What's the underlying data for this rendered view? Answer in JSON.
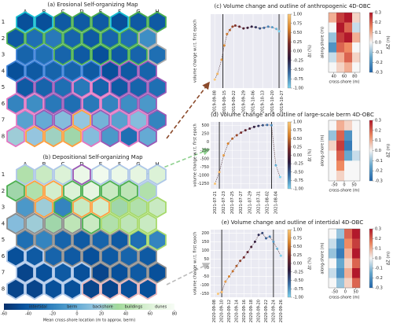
{
  "chart_data": [
    {
      "type": "hexmap",
      "title": "(a) Erosional Self-organizing Map",
      "columns": [
        "A",
        "B",
        "C",
        "D",
        "E",
        "F",
        "G",
        "H"
      ],
      "rows": [
        "1",
        "2",
        "3",
        "4",
        "5",
        "6",
        "7",
        "8"
      ],
      "values": [
        [
          -45,
          -45,
          -40,
          -40,
          -40,
          -45,
          -40,
          -40
        ],
        [
          -40,
          -30,
          -25,
          -35,
          -40,
          -35,
          -30,
          -15
        ],
        [
          -35,
          -30,
          -35,
          -40,
          -45,
          -40,
          -35,
          -30
        ],
        [
          -45,
          -40,
          -35,
          -35,
          -40,
          -45,
          -40,
          -35
        ],
        [
          -40,
          -35,
          -30,
          -25,
          -35,
          -40,
          -35,
          -30
        ],
        [
          -20,
          -15,
          -25,
          -30,
          -25,
          -20,
          -15,
          -10
        ],
        [
          -5,
          0,
          10,
          15,
          5,
          -5,
          10,
          -20
        ],
        [
          20,
          15,
          25,
          30,
          10,
          -10,
          -30,
          0
        ]
      ],
      "border_colors": [
        [
          "#17becf",
          "#17becf",
          "#4caf50",
          "#4caf50",
          "#4caf50",
          "#17becf",
          "#4caf50",
          "#4caf50"
        ],
        [
          "#4caf50",
          "#4caf50",
          "#4caf50",
          "#4caf50",
          "#4caf50",
          "#4caf50",
          "#4caf50",
          "#aaaaaa"
        ],
        [
          "#3a7fd5",
          "#3a7fd5",
          "#4caf50",
          "#4caf50",
          "#4caf50",
          "#4caf50",
          "#4caf50",
          "#aaaaaa"
        ],
        [
          "#3a7fd5",
          "#3a7fd5",
          "#3a7fd5",
          "#3a7fd5",
          "#3a7fd5",
          "#9b59b6",
          "#9b59b6",
          "#9b59b6"
        ],
        [
          "#9b59b6",
          "#9b59b6",
          "#9b59b6",
          "#e377c2",
          "#e377c2",
          "#9b59b6",
          "#9b59b6",
          "#9b59b6"
        ],
        [
          "#e377c2",
          "#e377c2",
          "#9b59b6",
          "#9b59b6",
          "#e377c2",
          "#e377c2",
          "#9b59b6",
          "#9b59b6"
        ],
        [
          "#e377c2",
          "#9b59b6",
          "#9b59b6",
          "#ff9f40",
          "#9b59b6",
          "#e377c2",
          "#e377c2",
          "#9b59b6"
        ],
        [
          "#e377c2",
          "#ff9f40",
          "#ff9f40",
          "#ff9f40",
          "#e377c2",
          "#9b59b6",
          "#e377c2",
          "#9b59b6"
        ]
      ]
    },
    {
      "type": "hexmap",
      "title": "(b) Depositional Self-organizing Map",
      "columns": [
        "A",
        "B",
        "C",
        "D",
        "E",
        "F",
        "G",
        "H"
      ],
      "rows": [
        "1",
        "2",
        "3",
        "4",
        "5",
        "6",
        "7",
        "8"
      ],
      "values": [
        [
          40,
          50,
          60,
          70,
          75,
          70,
          65,
          60
        ],
        [
          30,
          40,
          55,
          60,
          65,
          50,
          45,
          40
        ],
        [
          -10,
          20,
          -20,
          50,
          55,
          30,
          40,
          50
        ],
        [
          10,
          20,
          30,
          45,
          50,
          40,
          45,
          50
        ],
        [
          -30,
          -20,
          -35,
          -40,
          -35,
          -40,
          -30,
          -20
        ],
        [
          -45,
          -40,
          -35,
          -40,
          -45,
          -40,
          -35,
          -40
        ],
        [
          -50,
          -45,
          -40,
          -45,
          -50,
          -45,
          -40,
          -45
        ],
        [
          -50,
          -50,
          -45,
          -45,
          -50,
          -50,
          -45,
          -45
        ]
      ],
      "border_colors": [
        [
          "#aec7e8",
          "#aec7e8",
          "#aec7e8",
          "#9b59b6",
          "#aec7e8",
          "#aec7e8",
          "#aec7e8",
          "#aec7e8"
        ],
        [
          "#4caf50",
          "#ff9f40",
          "#ff9f40",
          "#4caf50",
          "#4caf50",
          "#4caf50",
          "#4caf50",
          "#aec7e8"
        ],
        [
          "#8c8c8c",
          "#ff9f40",
          "#4caf50",
          "#ff9f40",
          "#ff9f40",
          "#a6d96a",
          "#a6d96a",
          "#a6d96a"
        ],
        [
          "#8c8c8c",
          "#8c8c8c",
          "#8c8c8c",
          "#8c8c8c",
          "#4caf50",
          "#a6d96a",
          "#a6d96a",
          "#a6d96a"
        ],
        [
          "#8c8c8c",
          "#8c8c8c",
          "#8c8c8c",
          "#8c8c8c",
          "#8c8c8c",
          "#8c8c8c",
          "#a6d96a",
          "#a6d96a"
        ],
        [
          "#aec7e8",
          "#aec7e8",
          "#8c8c8c",
          "#8c8c8c",
          "#8c8c8c",
          "#8c8c8c",
          "#8c8c8c",
          "#8c8c8c"
        ],
        [
          "#aec7e8",
          "#aec7e8",
          "#aec7e8",
          "#aec7e8",
          "#8c8c8c",
          "#8c8c8c",
          "#8c8c8c",
          "#8c8c8c"
        ],
        [
          "#aec7e8",
          "#aec7e8",
          "#aec7e8",
          "#aec7e8",
          "#e8b4b8",
          "#e8b4b8",
          "#e8b4b8",
          "#e8b4b8"
        ]
      ]
    },
    {
      "type": "colorbar",
      "xlabel": "Mean cross-shore location (m to approx. berm)",
      "xlim": [
        -60,
        80
      ],
      "xticks": [
        -60,
        -40,
        -20,
        0,
        20,
        40,
        60,
        80
      ],
      "categories": [
        "intertidal",
        "berm",
        "backshore",
        "buildings",
        "dunes"
      ],
      "colors": [
        "#08306b",
        "#08519c",
        "#2171b5",
        "#4292c6",
        "#6baed6",
        "#9ecae1",
        "#a1d99b",
        "#c7e9c0",
        "#e5f5e0",
        "#f7fcf5"
      ]
    },
    {
      "type": "scatter",
      "title": "(c) Volume change and outline of anthropogenic 4D-OBC",
      "ylabel": "volume change w.r.t. first epoch",
      "x": [
        "2019-09-08",
        "2019-09-10",
        "2019-09-13",
        "2019-09-15",
        "2019-09-17",
        "2019-09-19",
        "2019-09-21",
        "2019-09-23",
        "2019-09-26",
        "2019-09-29",
        "2019-10-02",
        "2019-10-05",
        "2019-10-08",
        "2019-10-11",
        "2019-10-14",
        "2019-10-17",
        "2019-10-20",
        "2019-10-23",
        "2019-10-25"
      ],
      "values": [
        -25,
        -15,
        10,
        35,
        55,
        62,
        68,
        70,
        68,
        65,
        66,
        68,
        67,
        65,
        66,
        68,
        67,
        64,
        60
      ],
      "xlim": [
        "2019-09-05",
        "2019-10-29"
      ],
      "ylim": [
        -40,
        90
      ],
      "xticks": [
        "2019-09-08",
        "2019-09-15",
        "2019-09-22",
        "2019-09-29",
        "2019-10-06",
        "2019-10-13",
        "2019-10-20",
        "2019-10-27"
      ],
      "vlines": [
        "2019-09-14",
        "2019-10-25"
      ],
      "colorbar": {
        "label": "Δt (%)",
        "lim": [
          -1,
          1
        ],
        "ticks": [
          {
            "value": 1,
            "label": "1.00"
          },
          {
            "value": 0.75,
            "label": "0.75"
          },
          {
            "value": 0.5,
            "label": "0.50"
          },
          {
            "value": 0.25,
            "label": "0.25"
          },
          {
            "value": 0,
            "label": "0.00"
          },
          {
            "value": -0.25,
            "label": "-0.25"
          },
          {
            "value": -0.5,
            "label": "-0.50"
          },
          {
            "value": -0.75,
            "label": "-0.75"
          },
          {
            "value": -1,
            "label": "-1.00"
          }
        ],
        "colors": [
          "#7fd4f0",
          "#3a6ea5",
          "#2e1a3d",
          "#7a2a2a",
          "#d9822b",
          "#fbc97a"
        ]
      }
    },
    {
      "type": "scatter",
      "title": "(d) Volume change and outline of large-scale berm 4D-OBC",
      "ylabel": "volume change w.r.t. first epoch",
      "x": [
        "2021-07-21",
        "2021-07-22",
        "2021-07-23",
        "2021-07-24",
        "2021-07-25",
        "2021-07-26",
        "2021-07-27",
        "2021-07-28",
        "2021-07-29",
        "2021-07-30",
        "2021-07-31",
        "2021-08-01",
        "2021-08-02",
        "2021-08-03",
        "2021-08-04",
        "2021-08-05"
      ],
      "values": [
        -1250,
        -900,
        -400,
        -50,
        100,
        200,
        280,
        350,
        400,
        450,
        480,
        500,
        510,
        500,
        -700,
        -1050
      ],
      "xlim": [
        "2021-07-20",
        "2021-08-06"
      ],
      "ylim": [
        -1400,
        600
      ],
      "xticks": [
        "2021-07-21",
        "2021-07-23",
        "2021-07-25",
        "2021-07-27",
        "2021-07-29",
        "2021-07-31",
        "2021-08-02",
        "2021-08-04"
      ],
      "yticks": [
        500,
        250,
        0,
        -250,
        -500,
        -750,
        -1000,
        -1250
      ],
      "vlines": [
        "2021-07-22",
        "2021-08-03"
      ],
      "colorbar": {
        "label": "Δt (%)",
        "lim": [
          -1,
          1
        ],
        "ticks": [
          {
            "value": 1,
            "label": "1.00"
          },
          {
            "value": 0.75,
            "label": "0.75"
          },
          {
            "value": 0.5,
            "label": "0.50"
          },
          {
            "value": 0.25,
            "label": "0.25"
          },
          {
            "value": 0,
            "label": "0.00"
          },
          {
            "value": -0.25,
            "label": "-0.25"
          },
          {
            "value": -0.5,
            "label": "-0.50"
          },
          {
            "value": -0.75,
            "label": "-0.75"
          },
          {
            "value": -1,
            "label": "-1.00"
          }
        ],
        "colors": [
          "#7fd4f0",
          "#3a6ea5",
          "#2e1a3d",
          "#7a2a2a",
          "#d9822b",
          "#fbc97a"
        ]
      }
    },
    {
      "type": "scatter",
      "title": "(e) Volume change and outline of intertidal 4D-OBC",
      "ylabel": "volume change w.r.t. first epoch",
      "x": [
        "2020-09-09",
        "2020-09-10",
        "2020-09-11",
        "2020-09-12",
        "2020-09-13",
        "2020-09-14",
        "2020-09-15",
        "2020-09-16",
        "2020-09-17",
        "2020-09-18",
        "2020-09-19",
        "2020-09-20",
        "2020-09-21",
        "2020-09-22",
        "2020-09-23",
        "2020-09-24",
        "2020-09-25",
        "2020-09-26"
      ],
      "values": [
        -150,
        -140,
        -80,
        -50,
        -20,
        10,
        40,
        60,
        90,
        120,
        150,
        190,
        200,
        170,
        180,
        150,
        110,
        70
      ],
      "xlim": [
        "2020-09-07",
        "2020-09-27"
      ],
      "ylim": [
        -170,
        220
      ],
      "xticks": [
        "2020-09-08",
        "2020-09-10",
        "2020-09-12",
        "2020-09-14",
        "2020-09-16",
        "2020-09-18",
        "2020-09-20",
        "2020-09-22",
        "2020-09-24",
        "2020-09-26"
      ],
      "yticks": [
        200,
        150,
        100,
        50,
        0,
        -50,
        -100,
        -150
      ],
      "vlines": [
        "2020-09-10",
        "2020-09-24"
      ],
      "colorbar": {
        "label": "Δt (%)",
        "lim": [
          -1,
          1
        ],
        "ticks": [
          {
            "value": 1,
            "label": "1.00"
          },
          {
            "value": 0.75,
            "label": "0.75"
          },
          {
            "value": 0.5,
            "label": "0.50"
          },
          {
            "value": 0.25,
            "label": "0.25"
          },
          {
            "value": 0,
            "label": "0.00"
          },
          {
            "value": -0.25,
            "label": "-0.25"
          },
          {
            "value": -0.5,
            "label": "-0.50"
          },
          {
            "value": -0.75,
            "label": "-0.75"
          },
          {
            "value": -1,
            "label": "-1.00"
          }
        ],
        "colors": [
          "#7fd4f0",
          "#3a6ea5",
          "#2e1a3d",
          "#7a2a2a",
          "#d9822b",
          "#fbc97a"
        ]
      }
    },
    {
      "type": "heatmap",
      "xlabel": "cross-shore (m)",
      "ylabel": "along-shore (m)",
      "xlim": [
        30,
        90
      ],
      "xticks": [
        40,
        60,
        80
      ],
      "z": [
        [
          0.1,
          0.25,
          0.3,
          0.05
        ],
        [
          0,
          0.3,
          0.2,
          -0.05
        ],
        [
          -0.1,
          0.25,
          0.3,
          0.1
        ],
        [
          -0.2,
          0.2,
          0.15,
          0
        ],
        [
          -0.05,
          0.1,
          0.2,
          0.05
        ],
        [
          0,
          0.05,
          0.1,
          0
        ]
      ],
      "colorbar": {
        "label": "ΔZ (m)",
        "lim": [
          -0.3,
          0.3
        ],
        "ticks": [
          0.3,
          0.2,
          0.1,
          {
            "value": 0,
            "label": "0.0"
          },
          -0.1,
          -0.2,
          -0.3
        ],
        "colors": [
          "#2166ac",
          "#67a9cf",
          "#f7f7f7",
          "#ef8a62",
          "#b2182b"
        ]
      }
    },
    {
      "type": "heatmap",
      "xlabel": "cross-shore (m)",
      "ylabel": "along-shore (m)",
      "xlim": [
        -80,
        80
      ],
      "xticks": [
        -50,
        0,
        50
      ],
      "z": [
        [
          0,
          0.1,
          0.05,
          0
        ],
        [
          -0.1,
          0.2,
          -0.2,
          0
        ],
        [
          0.05,
          0.25,
          -0.25,
          0
        ],
        [
          0,
          0.2,
          -0.15,
          -0.05
        ],
        [
          0,
          0.15,
          0,
          0
        ],
        [
          0,
          0.05,
          0,
          0
        ]
      ],
      "colorbar": {
        "label": "ΔZ (m)",
        "lim": [
          -0.3,
          0.3
        ],
        "ticks": [
          0.3,
          0.2,
          0.1,
          {
            "value": 0,
            "label": "0.0"
          },
          -0.1,
          -0.2,
          -0.3
        ],
        "colors": [
          "#2166ac",
          "#67a9cf",
          "#f7f7f7",
          "#ef8a62",
          "#b2182b"
        ]
      }
    },
    {
      "type": "heatmap",
      "xlabel": "cross-shore (m)",
      "ylabel": "along-shore (m)",
      "xlim": [
        -80,
        70
      ],
      "xticks": [
        -50,
        0,
        50
      ],
      "z": [
        [
          0,
          -0.1,
          0.2,
          0.3
        ],
        [
          -0.05,
          -0.2,
          0.15,
          0.25
        ],
        [
          -0.1,
          -0.25,
          0.1,
          0.3
        ],
        [
          0,
          -0.15,
          0.05,
          0.2
        ],
        [
          -0.05,
          -0.2,
          0.1,
          0.3
        ],
        [
          0,
          -0.1,
          0.05,
          0.2
        ]
      ],
      "colorbar": {
        "label": "ΔZ (m)",
        "lim": [
          -0.3,
          0.3
        ],
        "ticks": [
          0.3,
          0.2,
          0.1,
          {
            "value": 0,
            "label": "0.0"
          },
          -0.1,
          -0.2,
          -0.3
        ],
        "colors": [
          "#2166ac",
          "#67a9cf",
          "#f7f7f7",
          "#ef8a62",
          "#b2182b"
        ]
      }
    }
  ]
}
